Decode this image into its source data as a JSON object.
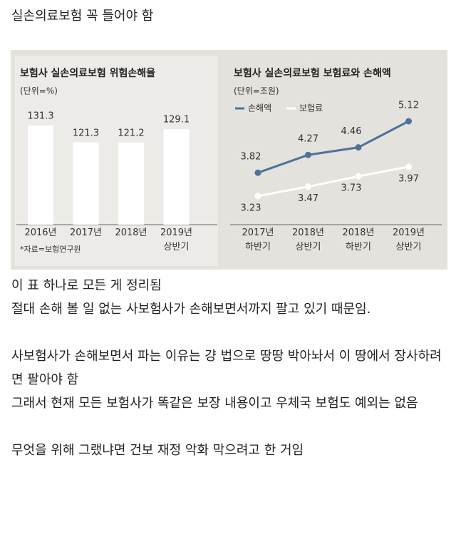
{
  "title": "실손의료보험 꼭 들어야 함",
  "chart_data": [
    {
      "type": "bar",
      "title": "보험사 실손의료보험 위험손해율",
      "unit": "(단위=%)",
      "categories": [
        [
          "2016년"
        ],
        [
          "2017년"
        ],
        [
          "2018년"
        ],
        [
          "2019년",
          "상반기"
        ]
      ],
      "values": [
        131.3,
        121.3,
        121.2,
        129.1
      ],
      "color": "#ffffff",
      "source": "*자료=보험연구원"
    },
    {
      "type": "line",
      "title": "보험사 실손의료보험 보험료와 손해액",
      "unit": "(단위=조원)",
      "categories": [
        [
          "2017년",
          "하반기"
        ],
        [
          "2018년",
          "상반기"
        ],
        [
          "2018년",
          "하반기"
        ],
        [
          "2019년",
          "상반기"
        ]
      ],
      "series": [
        {
          "name": "손해액",
          "color": "#4e7299",
          "values": [
            3.82,
            4.27,
            4.46,
            5.12
          ]
        },
        {
          "name": "보험료",
          "color": "#ffffff",
          "values": [
            3.23,
            3.47,
            3.73,
            3.97
          ]
        }
      ]
    }
  ],
  "paragraphs": [
    [
      "이 표 하나로 모든 게 정리됨",
      "절대 손해 볼 일 없는 사보험사가 손해보면서까지 팔고 있기 때문임."
    ],
    [
      "사보험사가 손해보면서 파는 이유는 걍 법으로 땅땅 박아놔서 이 땅에서 장사하려면 팔아야 함",
      "그래서 현재 모든 보험사가 똑같은 보장 내용이고 우체국 보험도 예외는 없음"
    ],
    [
      "무엇을 위해 그랬냐면 건보 재정 악화 막으려고 한 거임"
    ]
  ]
}
